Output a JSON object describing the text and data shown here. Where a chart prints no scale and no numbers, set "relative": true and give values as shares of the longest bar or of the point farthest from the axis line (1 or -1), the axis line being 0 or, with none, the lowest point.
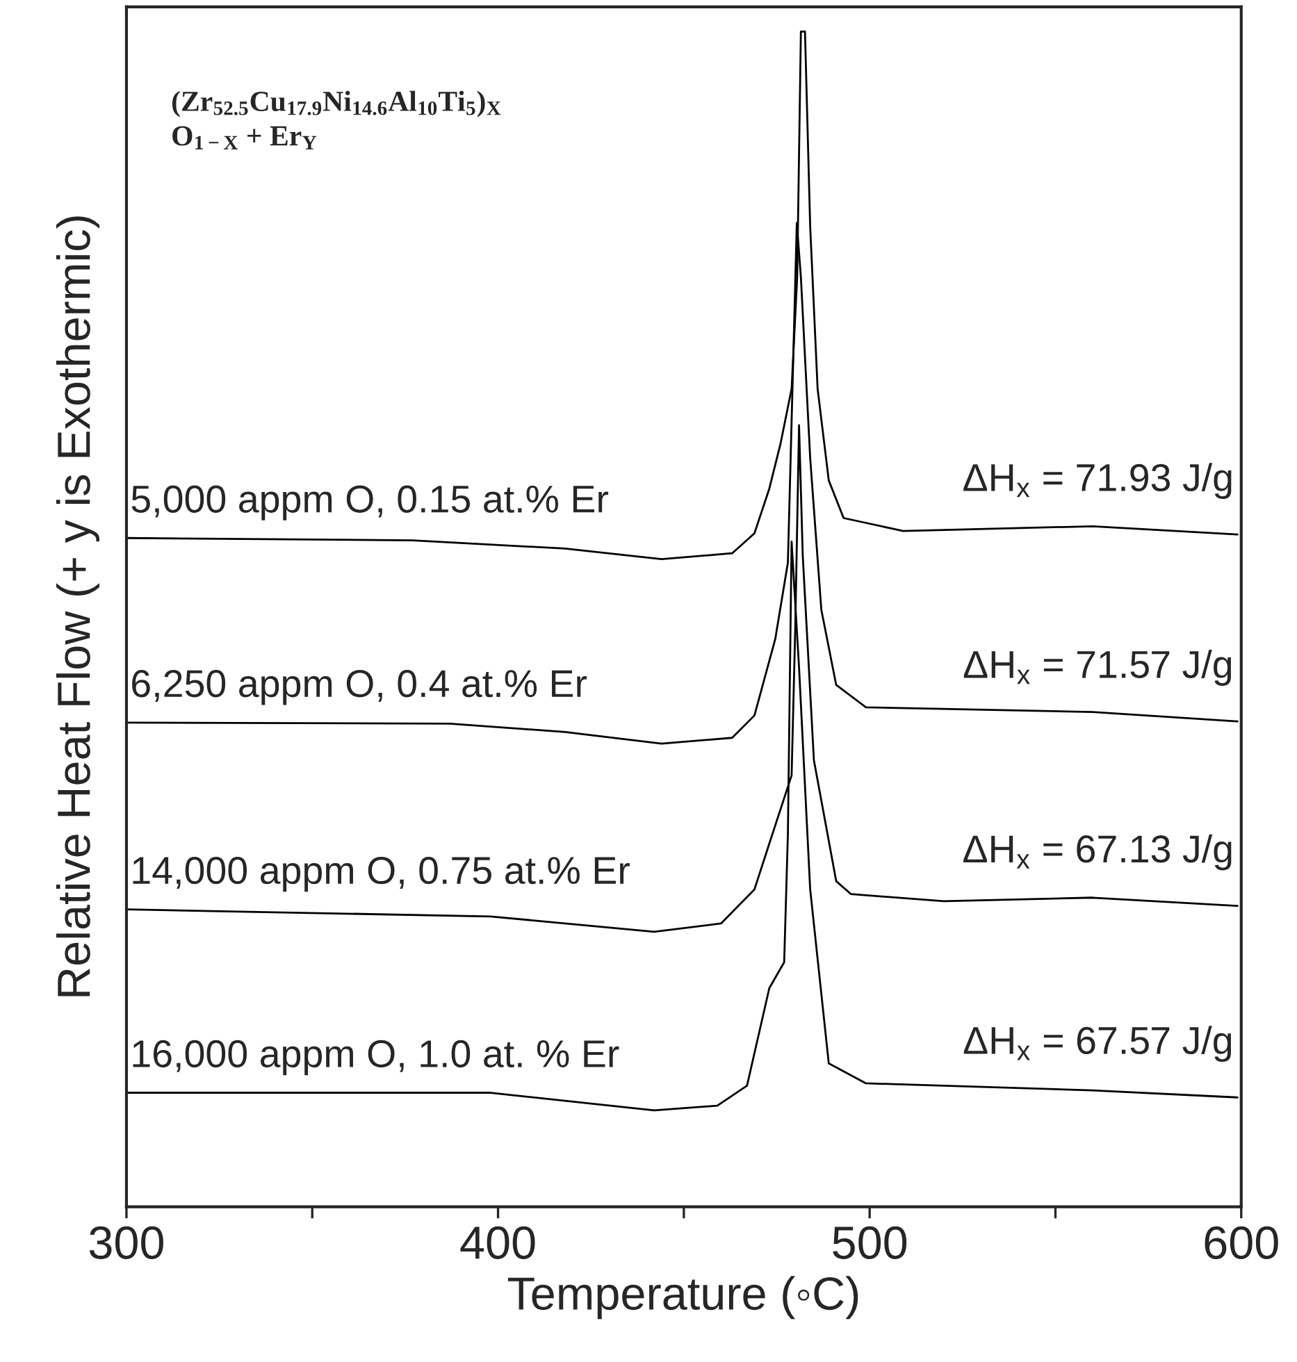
{
  "chart_data": {
    "type": "line",
    "relative": true,
    "xlabel": "Temperature (◦C)",
    "ylabel": "Relative Heat Flow (+ y is Exothermic)",
    "xlim": [
      300,
      600
    ],
    "xticks": [
      300,
      {
        "value": 350,
        "label": null
      },
      400,
      {
        "value": 450,
        "label": null
      },
      500,
      {
        "value": 550,
        "label": null
      },
      600
    ],
    "grid": false,
    "legend": false,
    "line_style": "solid",
    "marker": "none",
    "series": [
      {
        "name": "5,000 appm O, 0.15 at.% Er",
        "color": "#000000",
        "x": [
          300,
          377,
          418,
          444,
          463,
          469,
          473,
          476,
          479,
          480.5,
          481.5,
          482.6,
          484,
          486,
          489,
          493,
          509,
          560,
          599
        ],
        "values": [
          0.569,
          0.567,
          0.56,
          0.551,
          0.556,
          0.573,
          0.611,
          0.649,
          0.696,
          0.791,
          1.0,
          1.0,
          0.834,
          0.696,
          0.618,
          0.586,
          0.575,
          0.579,
          0.572
        ]
      },
      {
        "name": "6,250 appm O, 0.4 at.% Er",
        "color": "#000000",
        "x": [
          300,
          387,
          418,
          444,
          463,
          469,
          474.6,
          478,
          480.4,
          481.5,
          484,
          487,
          491,
          499,
          560,
          599
        ],
        "values": [
          0.412,
          0.411,
          0.404,
          0.394,
          0.399,
          0.418,
          0.483,
          0.548,
          0.837,
          0.791,
          0.637,
          0.508,
          0.444,
          0.425,
          0.421,
          0.413
        ]
      },
      {
        "name": "14,000 appm O, 0.75 at.% Er",
        "color": "#000000",
        "x": [
          300,
          398,
          442,
          460,
          469,
          473,
          479,
          480,
          481,
          482,
          485,
          491,
          495,
          520,
          560,
          599
        ],
        "values": [
          0.253,
          0.247,
          0.234,
          0.241,
          0.27,
          0.309,
          0.367,
          0.495,
          0.665,
          0.554,
          0.38,
          0.277,
          0.266,
          0.26,
          0.263,
          0.256
        ]
      },
      {
        "name": "16,000 appm O, 1.0 at. % Er",
        "color": "#000000",
        "x": [
          300,
          398,
          442,
          459,
          467,
          473,
          477,
          478,
          479,
          481,
          484,
          489,
          499,
          560,
          599
        ],
        "values": [
          0.097,
          0.097,
          0.082,
          0.086,
          0.103,
          0.186,
          0.208,
          0.317,
          0.566,
          0.459,
          0.27,
          0.122,
          0.105,
          0.099,
          0.093
        ]
      }
    ],
    "annotations": [
      "(Zr$_{52.5}$Cu$_{17.9}$Ni$_{14.6}$Al$_{10}$Ti$_{5}$)$_{X}$\nO$_{1−X}$ + Er$_{Y}$",
      "ΔH$_{x}$ = 71.93 J/g",
      "ΔH$_{x}$ = 71.57 J/g",
      "ΔH$_{x}$ = 67.13 J/g",
      "ΔH$_{x}$ = 67.57 J/g"
    ]
  }
}
